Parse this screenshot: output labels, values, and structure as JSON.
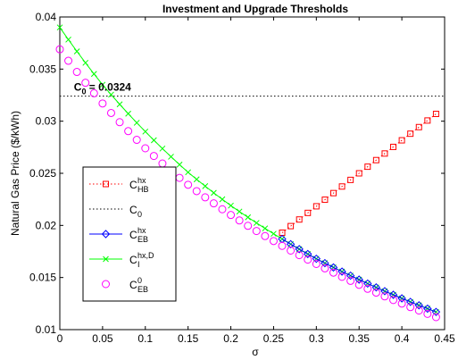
{
  "chart_data": {
    "type": "line",
    "title": "Investment and Upgrade Thresholds",
    "xlabel": "σ",
    "ylabel": "Natural Gas Price ($/kWh)",
    "xlim": [
      0,
      0.45
    ],
    "ylim": [
      0.01,
      0.04
    ],
    "x_ticks": [
      0,
      0.05,
      0.1,
      0.15,
      0.2,
      0.25,
      0.3,
      0.35,
      0.4,
      0.45
    ],
    "x_tick_labels": [
      "0",
      "0.05",
      "0.1",
      "0.15",
      "0.2",
      "0.25",
      "0.3",
      "0.35",
      "0.4",
      "0.45"
    ],
    "y_ticks": [
      0.01,
      0.015,
      0.02,
      0.025,
      0.03,
      0.035,
      0.04
    ],
    "y_tick_labels": [
      "0.01",
      "0.015",
      "0.02",
      "0.025",
      "0.03",
      "0.035",
      "0.04"
    ],
    "grid": false,
    "legend_position": "lower-left",
    "annotation": {
      "text_main": "C",
      "text_sub": "0",
      "text_rest": " = 0.0324",
      "x": 0.005,
      "y": 0.0324
    },
    "series": [
      {
        "key": "c_hb_hx",
        "legend_main": "C",
        "legend_sup": "hx",
        "legend_sub": "HB",
        "color": "#ff0000",
        "line_style": "dotted",
        "marker": "square",
        "x_range": [
          0.26,
          0.44
        ],
        "x_step": 0.01,
        "y_formula": "0.0193 + 0.0114*((x-0.26)/0.18)"
      },
      {
        "key": "c_0",
        "legend_main": "C",
        "legend_sup": "",
        "legend_sub": "0",
        "color": "#000000",
        "line_style": "dotted",
        "marker": "none",
        "x_range": [
          0.0,
          0.45
        ],
        "x_step": 0.45,
        "y_constant": 0.0324
      },
      {
        "key": "c_eb_hx",
        "legend_main": "C",
        "legend_sup": "hx",
        "legend_sub": "EB",
        "color": "#0000ff",
        "line_style": "solid",
        "marker": "diamond",
        "x_range": [
          0.26,
          0.44
        ],
        "x_step": 0.01,
        "follows": "c_i_hxd"
      },
      {
        "key": "c_i_hxd",
        "legend_main": "C",
        "legend_sup": "hx,D",
        "legend_sub": "I",
        "color": "#00ff00",
        "line_style": "solid",
        "marker": "x",
        "x_range": [
          0.0,
          0.44
        ],
        "x_step": 0.01,
        "control_points": [
          [
            0.0,
            0.039
          ],
          [
            0.05,
            0.0335
          ],
          [
            0.1,
            0.029
          ],
          [
            0.15,
            0.0251
          ],
          [
            0.2,
            0.0219
          ],
          [
            0.25,
            0.0192
          ],
          [
            0.3,
            0.0168
          ],
          [
            0.35,
            0.0148
          ],
          [
            0.4,
            0.013
          ],
          [
            0.44,
            0.0117
          ]
        ]
      },
      {
        "key": "c_eb_0",
        "legend_main": "C",
        "legend_sup": "0",
        "legend_sub": "EB",
        "color": "#ff00ff",
        "line_style": "none",
        "marker": "circle",
        "x_range": [
          0.0,
          0.44
        ],
        "x_step": 0.01,
        "control_points": [
          [
            0.0,
            0.0369
          ],
          [
            0.05,
            0.0317
          ],
          [
            0.1,
            0.0274
          ],
          [
            0.15,
            0.0239
          ],
          [
            0.2,
            0.021
          ],
          [
            0.25,
            0.0185
          ],
          [
            0.3,
            0.0163
          ],
          [
            0.35,
            0.0143
          ],
          [
            0.4,
            0.0125
          ],
          [
            0.44,
            0.0112
          ]
        ]
      }
    ]
  }
}
